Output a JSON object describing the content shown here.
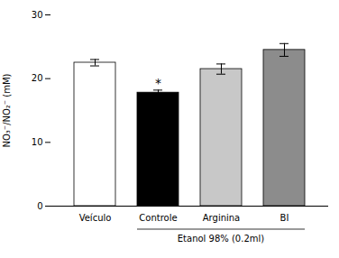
{
  "chart_data": {
    "type": "bar",
    "categories": [
      "Veículo",
      "Controle",
      "Arginina",
      "BI"
    ],
    "values": [
      22.5,
      17.8,
      21.5,
      24.5
    ],
    "errors": [
      0.5,
      0.4,
      0.8,
      1.0
    ],
    "colors": [
      "#ffffff",
      "#000000",
      "#c8c8c8",
      "#8c8c8c"
    ],
    "ylabel": "NO₃⁻/NO₂⁻ (mM)",
    "ylim": [
      0,
      30
    ],
    "yticks": [
      0,
      10,
      20,
      30
    ],
    "annotations": [
      {
        "text": "*",
        "category": "Controle"
      },
      {
        "text": "Etanol 98% (0.2ml)",
        "categories": [
          "Controle",
          "BI"
        ]
      }
    ]
  }
}
